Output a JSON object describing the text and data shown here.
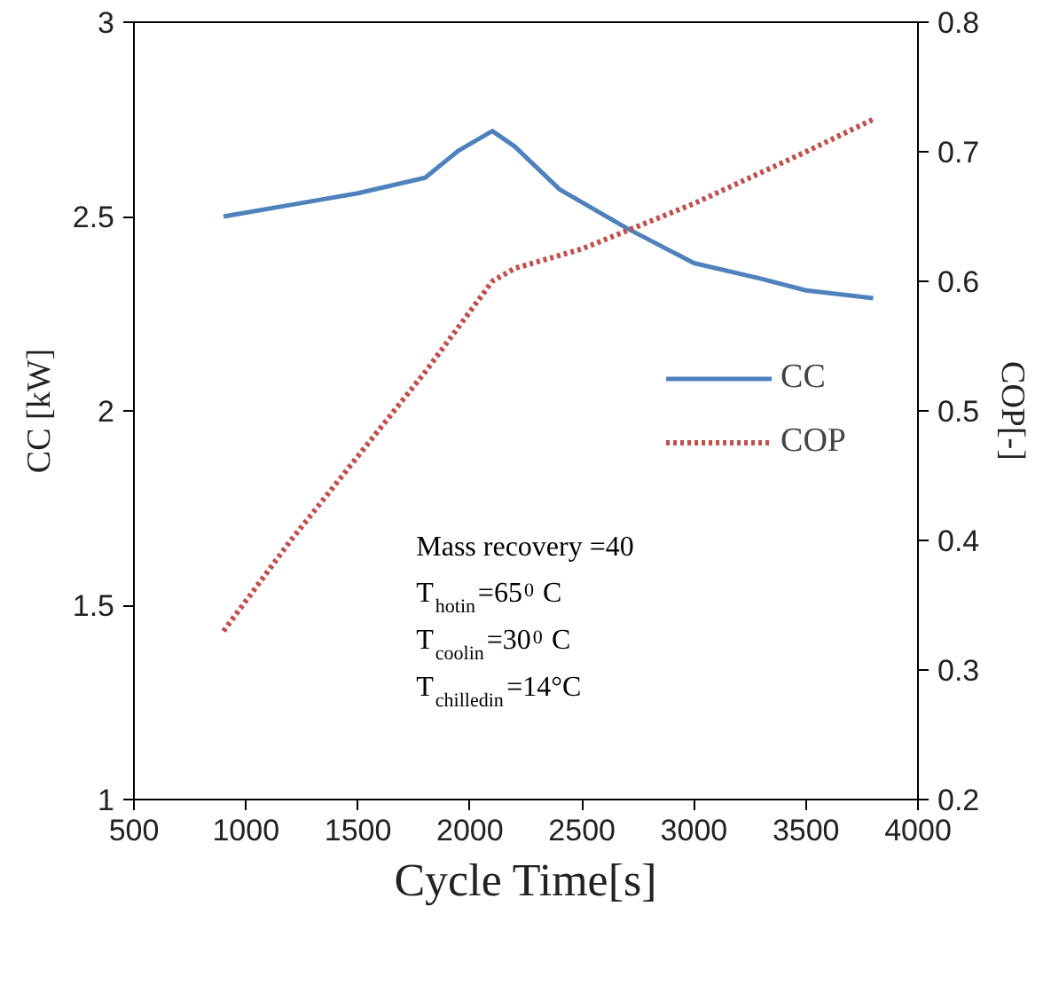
{
  "chart_data": {
    "type": "line",
    "xlabel": "Cycle Time[s]",
    "ylabel": "CC [kW]",
    "y2label": "COP[-]",
    "series": [
      {
        "name": "CC",
        "color": "#4f81bd",
        "line_style": "solid",
        "x": [
          900,
          1200,
          1500,
          1800,
          1950,
          2100,
          2200,
          2400,
          2700,
          3000,
          3300,
          3500,
          3800
        ],
        "values": [
          2.5,
          2.53,
          2.56,
          2.6,
          2.67,
          2.72,
          2.68,
          2.57,
          2.47,
          2.38,
          2.34,
          2.31,
          2.29
        ]
      },
      {
        "name": "COP",
        "color": "#c0504d",
        "line_style": "dotted",
        "axis": "y2",
        "x": [
          900,
          1200,
          1500,
          1800,
          2100,
          2200,
          2500,
          3000,
          3500,
          3800
        ],
        "values": [
          0.33,
          0.4,
          0.465,
          0.53,
          0.6,
          0.61,
          0.625,
          0.66,
          0.7,
          0.725
        ]
      }
    ],
    "xlim": [
      500,
      4000
    ],
    "xticks": [
      500,
      1000,
      1500,
      2000,
      2500,
      3000,
      3500,
      4000
    ],
    "ylim": [
      1,
      3
    ],
    "yticks": [
      1,
      1.5,
      2,
      2.5,
      3
    ],
    "y2lim": [
      0.2,
      0.8
    ],
    "y2ticks": [
      0.2,
      0.3,
      0.4,
      0.5,
      0.6,
      0.7,
      0.8
    ],
    "grid": false,
    "legend": "right",
    "marker": "none",
    "annotations": [
      "Mass recovery =40",
      "T$_{hotin}$=65$^{0}$ C",
      "T$_{coolin}$=30$^{0}$ C",
      "T$_{chilledin}$=14°C"
    ]
  }
}
